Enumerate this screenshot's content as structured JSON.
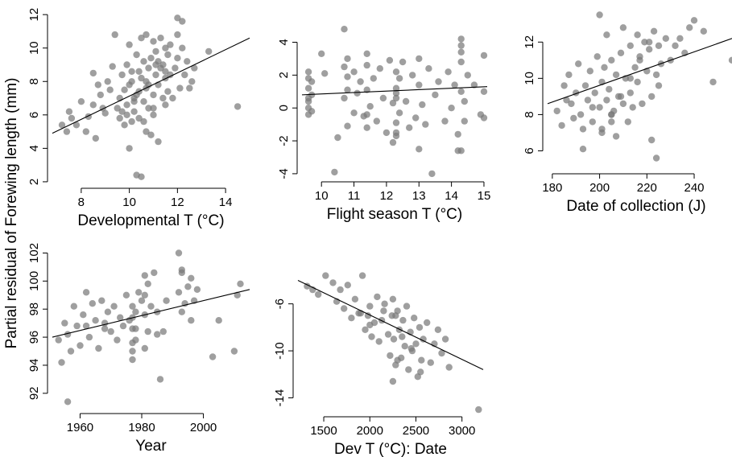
{
  "figure": {
    "shared_ylabel": "Partial residual of Forewing length (mm)"
  },
  "chart_data": [
    {
      "type": "scatter",
      "xlabel": "Developmental T (°C)",
      "xlim": [
        6.8,
        15.0
      ],
      "ylim": [
        1.9,
        12.2
      ],
      "xticks": [
        8,
        10,
        12,
        14
      ],
      "yticks": [
        2,
        4,
        6,
        8,
        10,
        12
      ],
      "fit_line": {
        "x": [
          6.8,
          15.0
        ],
        "y": [
          4.9,
          10.6
        ]
      },
      "point_color": "#7a7a7a",
      "x": [
        7.2,
        7.4,
        7.5,
        7.6,
        7.8,
        8.0,
        8.2,
        8.3,
        8.5,
        8.5,
        8.6,
        8.7,
        8.8,
        8.9,
        9.0,
        9.1,
        9.2,
        9.3,
        9.4,
        9.5,
        9.6,
        9.6,
        9.7,
        9.7,
        9.8,
        9.8,
        9.9,
        9.9,
        10.0,
        10.0,
        10.0,
        10.1,
        10.1,
        10.2,
        10.2,
        10.3,
        10.3,
        10.4,
        10.4,
        10.5,
        10.5,
        10.5,
        10.6,
        10.6,
        10.7,
        10.7,
        10.7,
        10.8,
        10.8,
        10.9,
        10.9,
        11.0,
        11.0,
        11.0,
        11.1,
        11.1,
        11.2,
        11.2,
        11.3,
        11.3,
        11.4,
        11.4,
        11.5,
        11.5,
        11.6,
        11.6,
        11.7,
        11.7,
        11.8,
        11.9,
        12.0,
        12.0,
        12.1,
        12.2,
        12.3,
        12.4,
        12.5,
        12.6,
        12.7,
        13.3,
        14.5,
        10.1,
        10.4,
        10.8,
        11.2,
        10.2,
        10.6,
        11.0,
        11.5,
        9.9,
        10.3,
        10.7,
        11.1,
        11.5,
        12.0,
        12.2
      ],
      "y": [
        5.4,
        5.0,
        6.2,
        5.8,
        5.4,
        6.8,
        5.0,
        5.9,
        8.5,
        6.6,
        4.6,
        7.8,
        7.2,
        6.4,
        6.1,
        8.0,
        7.5,
        8.9,
        10.8,
        6.4,
        5.8,
        7.0,
        6.2,
        8.4,
        7.5,
        5.4,
        9.0,
        6.6,
        7.8,
        4.0,
        10.2,
        5.6,
        8.6,
        7.0,
        6.2,
        2.4,
        9.6,
        7.4,
        5.8,
        8.2,
        2.3,
        10.6,
        6.8,
        9.2,
        7.6,
        5.0,
        10.8,
        8.8,
        6.4,
        9.4,
        4.8,
        7.2,
        10.4,
        6.0,
        8.4,
        9.8,
        7.8,
        4.4,
        8.8,
        10.6,
        7.0,
        9.0,
        8.2,
        6.6,
        9.6,
        7.4,
        10.2,
        8.4,
        7.0,
        8.8,
        11.8,
        9.4,
        7.6,
        11.6,
        8.4,
        9.2,
        7.6,
        8.0,
        8.8,
        9.8,
        6.5,
        8.0,
        8.6,
        7.8,
        9.2,
        6.8,
        5.6,
        6.4,
        8.6,
        6.0,
        7.2,
        8.0,
        9.0,
        10.0,
        10.8,
        10.0
      ]
    },
    {
      "type": "scatter",
      "xlabel": "Flight season T (°C)",
      "xlim": [
        9.4,
        15.1
      ],
      "ylim": [
        -4.2,
        5.2
      ],
      "xticks": [
        10,
        11,
        12,
        13,
        14,
        15
      ],
      "yticks": [
        -4,
        -2,
        0,
        2,
        4
      ],
      "fit_line": {
        "x": [
          9.4,
          15.1
        ],
        "y": [
          0.8,
          1.3
        ]
      },
      "point_color": "#7a7a7a",
      "x": [
        9.6,
        9.6,
        9.6,
        9.6,
        9.6,
        9.6,
        9.7,
        9.7,
        9.7,
        10.0,
        10.1,
        10.4,
        10.5,
        10.7,
        10.7,
        10.7,
        10.8,
        10.8,
        10.8,
        11.0,
        11.0,
        11.1,
        11.2,
        11.3,
        11.4,
        11.4,
        11.4,
        11.4,
        11.5,
        11.6,
        11.7,
        11.8,
        11.9,
        12.0,
        12.1,
        12.2,
        12.2,
        12.3,
        12.3,
        12.3,
        12.3,
        12.3,
        12.4,
        12.4,
        12.5,
        12.6,
        12.7,
        12.8,
        12.9,
        13.0,
        13.0,
        13.0,
        13.1,
        13.2,
        13.3,
        13.4,
        13.5,
        13.6,
        13.8,
        13.9,
        14.0,
        14.1,
        14.2,
        14.3,
        14.3,
        14.3,
        14.3,
        14.3,
        14.4,
        14.4,
        14.5,
        14.7,
        14.9,
        15.0,
        15.0,
        15.0,
        14.3,
        14.2,
        12.3,
        12.3,
        11.4,
        10.8,
        9.6
      ],
      "y": [
        1.2,
        0.4,
        -0.4,
        1.8,
        0.0,
        2.2,
        1.6,
        -0.2,
        0.8,
        3.3,
        2.1,
        -3.9,
        -1.8,
        4.8,
        0.6,
        2.5,
        -1.1,
        1.9,
        3.0,
        -0.3,
        2.2,
        0.9,
        1.6,
        -0.5,
        3.3,
        1.1,
        -1.2,
        2.6,
        0.1,
        1.8,
        -0.8,
        2.4,
        0.6,
        -1.5,
        2.9,
        0.3,
        -2.1,
        1.2,
        -0.9,
        2.2,
        -1.7,
        0.6,
        1.8,
        -0.3,
        2.8,
        0.4,
        -1.2,
        2.0,
        -0.6,
        1.4,
        -2.5,
        3.0,
        0.2,
        -1.0,
        2.4,
        -4.0,
        0.8,
        1.6,
        -0.8,
        2.2,
        0.0,
        1.4,
        -1.6,
        4.2,
        2.8,
        1.0,
        -2.6,
        3.4,
        0.4,
        -0.8,
        2.0,
        1.4,
        -0.4,
        3.2,
        1.0,
        -0.6,
        3.8,
        -2.6,
        -1.5,
        0.9,
        -0.4,
        1.1,
        0.6
      ]
    },
    {
      "type": "scatter",
      "xlabel": "Date of collection (J)",
      "xlim": [
        178,
        256
      ],
      "ylim": [
        5.0,
        13.7
      ],
      "xticks": [
        180,
        200,
        220,
        240
      ],
      "yticks": [
        6,
        8,
        10,
        12
      ],
      "fit_line": {
        "x": [
          178,
          256
        ],
        "y": [
          8.6,
          12.2
        ]
      },
      "point_color": "#7a7a7a",
      "x": [
        182,
        184,
        185,
        186,
        187,
        188,
        189,
        190,
        191,
        192,
        193,
        194,
        195,
        196,
        197,
        198,
        199,
        200,
        200,
        201,
        201,
        202,
        203,
        203,
        204,
        205,
        205,
        206,
        207,
        207,
        208,
        209,
        210,
        210,
        211,
        212,
        213,
        213,
        214,
        215,
        216,
        216,
        217,
        218,
        219,
        220,
        221,
        222,
        223,
        224,
        225,
        226,
        228,
        230,
        232,
        234,
        236,
        238,
        240,
        244,
        248,
        256,
        201,
        205,
        209,
        213,
        217,
        221,
        225,
        193,
        197,
        222,
        224,
        205
      ],
      "y": [
        8.2,
        7.4,
        9.6,
        8.8,
        10.2,
        8.6,
        7.8,
        9.2,
        10.8,
        8.0,
        6.1,
        9.6,
        8.8,
        10.4,
        7.6,
        9.2,
        11.2,
        8.4,
        13.5,
        9.8,
        7.2,
        10.6,
        8.8,
        12.4,
        9.4,
        7.6,
        11.0,
        8.2,
        10.2,
        6.8,
        9.0,
        11.4,
        8.6,
        12.8,
        10.0,
        7.6,
        11.8,
        9.2,
        8.4,
        10.6,
        12.4,
        9.8,
        11.2,
        8.6,
        12.0,
        10.4,
        11.6,
        9.0,
        12.6,
        10.2,
        11.8,
        10.8,
        12.2,
        11.0,
        11.8,
        12.2,
        11.4,
        12.8,
        13.2,
        12.6,
        9.8,
        11.0,
        7.0,
        8.0,
        9.0,
        10.0,
        11.0,
        12.0,
        9.6,
        7.2,
        8.4,
        6.6,
        5.6,
        8.0
      ]
    },
    {
      "type": "scatter",
      "xlabel": "Year",
      "xlim": [
        1951,
        2015
      ],
      "ylim": [
        90.9,
        102.6
      ],
      "xticks": [
        1960,
        1980,
        2000
      ],
      "yticks": [
        92,
        94,
        96,
        98,
        100,
        102
      ],
      "fit_line": {
        "x": [
          1951,
          2015
        ],
        "y": [
          96.0,
          99.4
        ]
      },
      "point_color": "#7a7a7a",
      "x": [
        1953,
        1954,
        1955,
        1956,
        1957,
        1958,
        1959,
        1960,
        1961,
        1962,
        1963,
        1964,
        1965,
        1966,
        1967,
        1968,
        1969,
        1970,
        1971,
        1972,
        1973,
        1974,
        1975,
        1976,
        1977,
        1977,
        1977,
        1977,
        1977,
        1978,
        1978,
        1978,
        1979,
        1980,
        1981,
        1981,
        1981,
        1982,
        1982,
        1983,
        1984,
        1985,
        1986,
        1987,
        1988,
        1992,
        1992,
        1993,
        1993,
        1994,
        1995,
        1996,
        1996,
        1997,
        1998,
        2003,
        2005,
        2010,
        2011,
        2012,
        1956,
        1962,
        1968,
        1981,
        1977,
        1985,
        1993
      ],
      "y": [
        95.8,
        94.2,
        97.0,
        96.2,
        95.0,
        98.2,
        96.8,
        95.4,
        97.6,
        99.2,
        96.0,
        98.4,
        97.2,
        95.2,
        98.6,
        96.6,
        97.8,
        96.4,
        98.2,
        95.8,
        97.4,
        96.8,
        99.0,
        97.2,
        95.6,
        96.6,
        97.4,
        98.2,
        94.4,
        97.8,
        95.8,
        96.6,
        99.2,
        98.6,
        100.4,
        97.6,
        95.2,
        99.8,
        96.4,
        98.2,
        100.6,
        97.8,
        93.0,
        96.4,
        98.6,
        102.0,
        99.2,
        97.8,
        100.6,
        98.4,
        99.6,
        97.2,
        100.2,
        98.6,
        99.4,
        94.6,
        97.2,
        95.0,
        99.0,
        99.8,
        91.4,
        96.8,
        97.0,
        99.0,
        95.0,
        96.2,
        100.8
      ]
    },
    {
      "type": "scatter",
      "xlabel": "Dev T (°C): Date",
      "xlim": [
        1220,
        3230
      ],
      "ylim": [
        -15.2,
        -2.6
      ],
      "xticks": [
        1500,
        2000,
        2500,
        3000
      ],
      "yticks": [
        -14,
        -10,
        -6
      ],
      "fit_line": {
        "x": [
          1220,
          3230
        ],
        "y": [
          -4.0,
          -11.6
        ]
      },
      "point_color": "#7a7a7a",
      "x": [
        1320,
        1380,
        1440,
        1520,
        1600,
        1640,
        1680,
        1720,
        1760,
        1800,
        1840,
        1880,
        1920,
        1950,
        1980,
        2000,
        2020,
        2050,
        2080,
        2100,
        2130,
        2160,
        2200,
        2220,
        2240,
        2250,
        2260,
        2280,
        2300,
        2320,
        2340,
        2360,
        2380,
        2400,
        2420,
        2440,
        2460,
        2480,
        2500,
        2520,
        2540,
        2560,
        2580,
        2620,
        2660,
        2700,
        2740,
        2780,
        2820,
        2860,
        3180,
        1900,
        2000,
        2150,
        2250,
        2350,
        2450,
        2550,
        2280,
        2300
      ],
      "y": [
        -4.5,
        -4.8,
        -5.2,
        -3.6,
        -4.2,
        -5.8,
        -4.8,
        -6.4,
        -4.4,
        -7.2,
        -5.6,
        -6.8,
        -3.6,
        -8.2,
        -7.0,
        -6.2,
        -8.8,
        -7.6,
        -5.4,
        -9.2,
        -7.4,
        -6.0,
        -8.6,
        -10.4,
        -7.0,
        -5.6,
        -9.0,
        -11.2,
        -6.6,
        -8.2,
        -10.6,
        -7.4,
        -9.6,
        -6.2,
        -11.6,
        -8.4,
        -10.0,
        -7.2,
        -9.4,
        -12.2,
        -8.0,
        -10.8,
        -9.0,
        -7.6,
        -11.0,
        -9.4,
        -8.2,
        -10.2,
        -9.0,
        -11.4,
        -15.0,
        -6.8,
        -7.8,
        -6.6,
        -12.6,
        -8.8,
        -9.8,
        -11.8,
        -7.0,
        -10.8
      ]
    }
  ]
}
